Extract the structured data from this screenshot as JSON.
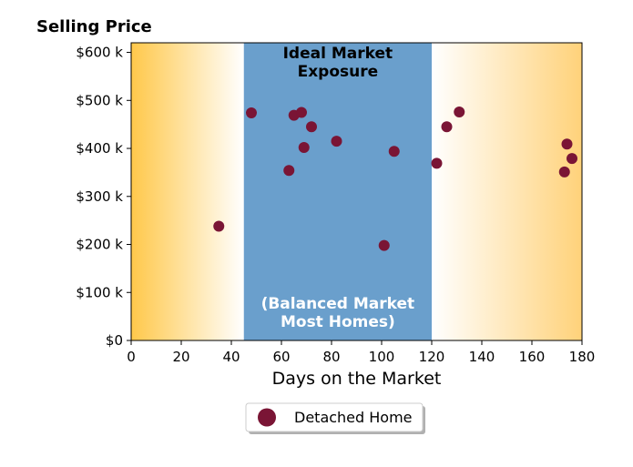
{
  "chart_data": {
    "type": "scatter",
    "title": "Selling Price",
    "xlabel": "Days on the Market",
    "ylabel": "",
    "xlim": [
      0,
      180
    ],
    "ylim": [
      0,
      620000
    ],
    "x_ticks": [
      0,
      20,
      40,
      60,
      80,
      100,
      120,
      140,
      160,
      180
    ],
    "x_tick_labels": [
      "0",
      "20",
      "40",
      "60",
      "80",
      "100",
      "120",
      "140",
      "160",
      "180"
    ],
    "y_ticks": [
      0,
      100000,
      200000,
      300000,
      400000,
      500000,
      600000
    ],
    "y_tick_labels": [
      "$0",
      "$100 k",
      "$200 k",
      "$300 k",
      "$400 k",
      "$500 k",
      "$600 k"
    ],
    "grid": false,
    "ideal_zone": {
      "x_range": [
        45,
        120
      ],
      "color": "#6a9fcc",
      "label_top": [
        "Ideal Market",
        "Exposure"
      ],
      "label_bottom": [
        "(Balanced Market",
        "Most Homes)"
      ]
    },
    "side_zone_color": "#ffcc55",
    "series": [
      {
        "name": "Detached Home",
        "color": "#7a1535",
        "points": [
          {
            "x": 35,
            "y": 238000
          },
          {
            "x": 48,
            "y": 474000
          },
          {
            "x": 63,
            "y": 354000
          },
          {
            "x": 65,
            "y": 469000
          },
          {
            "x": 68,
            "y": 475000
          },
          {
            "x": 69,
            "y": 402000
          },
          {
            "x": 72,
            "y": 445000
          },
          {
            "x": 82,
            "y": 415000
          },
          {
            "x": 101,
            "y": 198000
          },
          {
            "x": 105,
            "y": 394000
          },
          {
            "x": 122,
            "y": 369000
          },
          {
            "x": 126,
            "y": 445000
          },
          {
            "x": 131,
            "y": 476000
          },
          {
            "x": 173,
            "y": 351000
          },
          {
            "x": 174,
            "y": 409000
          },
          {
            "x": 176,
            "y": 379000
          }
        ]
      }
    ],
    "legend": {
      "position": "bottom-center",
      "entries": [
        "Detached Home"
      ]
    }
  }
}
